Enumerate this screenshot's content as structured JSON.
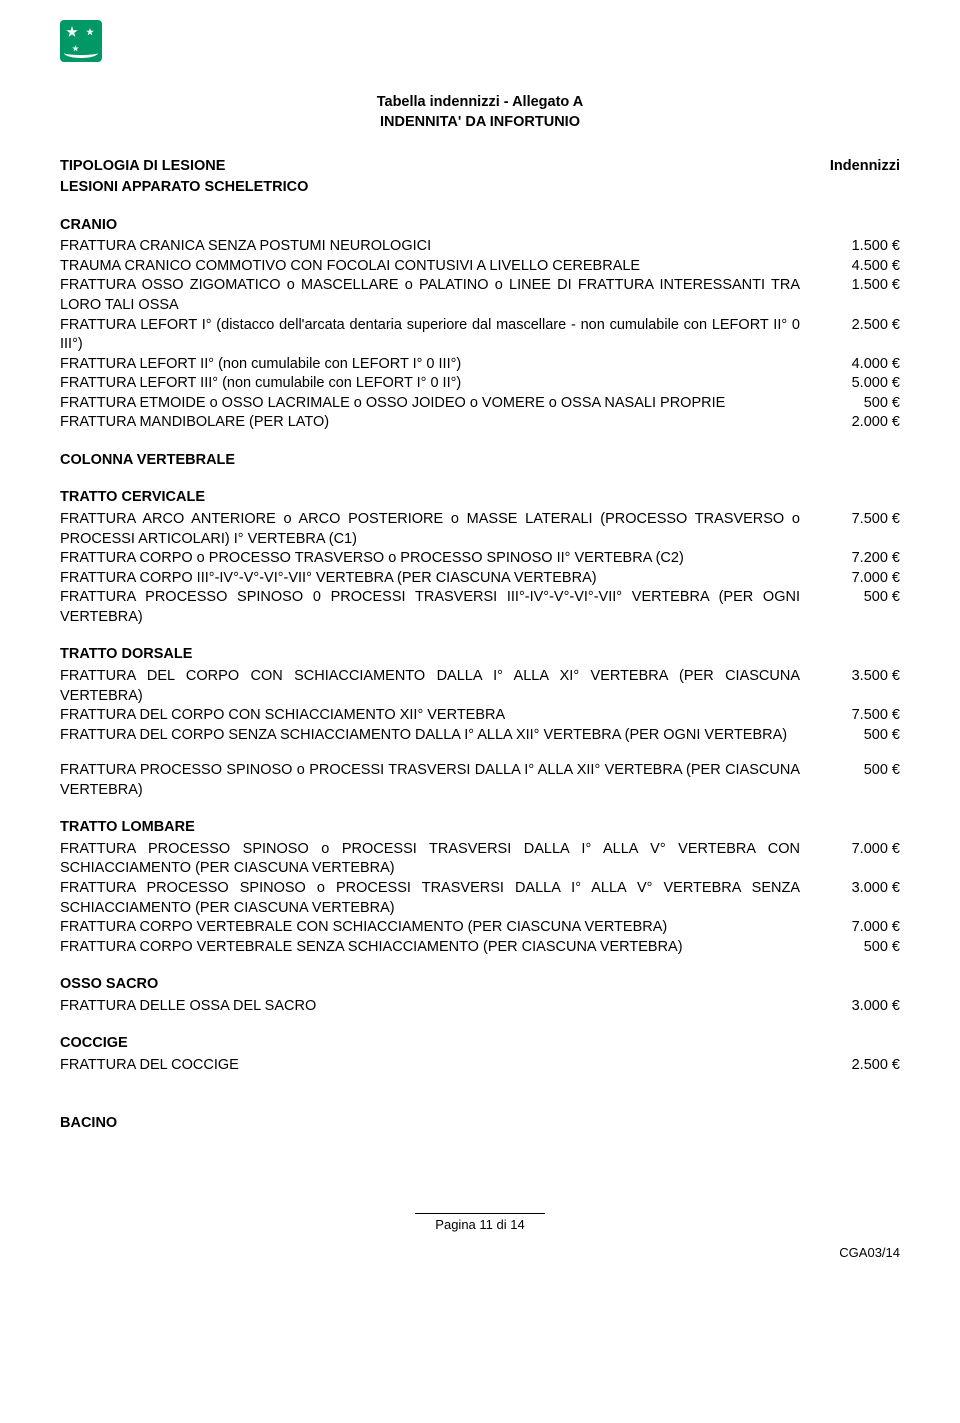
{
  "logo": {
    "bg": "#009966"
  },
  "title": {
    "line1": "Tabella indennizzi - Allegato A",
    "line2": "INDENNITA' DA INFORTUNIO"
  },
  "header": {
    "left": "TIPOLOGIA DI LESIONE",
    "right": "Indennizzi"
  },
  "section0": "LESIONI APPARATO SCHELETRICO",
  "cranio": {
    "title": "CRANIO",
    "rows": [
      {
        "desc": "FRATTURA CRANICA SENZA POSTUMI NEUROLOGICI",
        "amt": "1.500 €"
      },
      {
        "desc": "TRAUMA CRANICO COMMOTIVO CON FOCOLAI CONTUSIVI A LIVELLO CEREBRALE",
        "amt": "4.500 €"
      },
      {
        "desc": "FRATTURA OSSO ZIGOMATICO o MASCELLARE o PALATINO o LINEE DI FRATTURA INTERESSANTI TRA LORO TALI OSSA",
        "amt": "1.500 €"
      },
      {
        "desc": "FRATTURA LEFORT I° (distacco dell'arcata dentaria superiore dal mascellare - non cumulabile con LEFORT II° 0 III°)",
        "amt": "2.500 €"
      },
      {
        "desc": "FRATTURA LEFORT II°  (non cumulabile con LEFORT I° 0 III°)",
        "amt": "4.000 €"
      },
      {
        "desc": "FRATTURA LEFORT III° (non cumulabile con LEFORT I° 0 II°)",
        "amt": "5.000 €"
      },
      {
        "desc": "FRATTURA ETMOIDE o OSSO LACRIMALE o OSSO JOIDEO o VOMERE o OSSA NASALI PROPRIE",
        "amt": "500 €"
      },
      {
        "desc": "FRATTURA MANDIBOLARE (PER LATO)",
        "amt": "2.000 €"
      }
    ]
  },
  "colonna": {
    "title": "COLONNA VERTEBRALE"
  },
  "cervicale": {
    "title": "TRATTO CERVICALE",
    "rows": [
      {
        "desc": "FRATTURA ARCO ANTERIORE o ARCO POSTERIORE o MASSE LATERALI (PROCESSO TRASVERSO o PROCESSI ARTICOLARI) I° VERTEBRA (C1)",
        "amt": "7.500 €"
      },
      {
        "desc": "FRATTURA CORPO o PROCESSO TRASVERSO o PROCESSO SPINOSO II° VERTEBRA (C2)",
        "amt": "7.200 €"
      },
      {
        "desc": "FRATTURA CORPO III°-IV°-V°-VI°-VII° VERTEBRA (PER CIASCUNA VERTEBRA)",
        "amt": "7.000 €"
      },
      {
        "desc": "FRATTURA PROCESSO SPINOSO 0 PROCESSI TRASVERSI III°-IV°-V°-VI°-VII° VERTEBRA (PER OGNI VERTEBRA)",
        "amt": "500 €"
      }
    ]
  },
  "dorsale": {
    "title": "TRATTO DORSALE",
    "rows": [
      {
        "desc": "FRATTURA DEL CORPO CON SCHIACCIAMENTO DALLA I° ALLA XI° VERTEBRA (PER CIASCUNA VERTEBRA)",
        "amt": "3.500 €"
      },
      {
        "desc": "FRATTURA DEL CORPO CON SCHIACCIAMENTO XII° VERTEBRA",
        "amt": "7.500 €"
      },
      {
        "desc": "FRATTURA DEL CORPO SENZA SCHIACCIAMENTO DALLA I° ALLA XII° VERTEBRA (PER OGNI VERTEBRA)",
        "amt": "500 €"
      }
    ],
    "rows2": [
      {
        "desc": "FRATTURA PROCESSO SPINOSO o PROCESSI TRASVERSI DALLA I° ALLA XII° VERTEBRA (PER CIASCUNA VERTEBRA)",
        "amt": "500 €"
      }
    ]
  },
  "lombare": {
    "title": "TRATTO LOMBARE",
    "rows": [
      {
        "desc": "FRATTURA PROCESSO SPINOSO o PROCESSI TRASVERSI DALLA I° ALLA V° VERTEBRA CON SCHIACCIAMENTO (PER CIASCUNA VERTEBRA)",
        "amt": "7.000 €"
      },
      {
        "desc": "FRATTURA PROCESSO SPINOSO o PROCESSI TRASVERSI DALLA I° ALLA V° VERTEBRA SENZA SCHIACCIAMENTO (PER CIASCUNA VERTEBRA)",
        "amt": "3.000 €"
      },
      {
        "desc": "FRATTURA CORPO VERTEBRALE CON SCHIACCIAMENTO (PER CIASCUNA VERTEBRA)",
        "amt": "7.000 €"
      },
      {
        "desc": "FRATTURA CORPO VERTEBRALE SENZA SCHIACCIAMENTO (PER CIASCUNA VERTEBRA)",
        "amt": "500 €"
      }
    ]
  },
  "sacro": {
    "title": "OSSO SACRO",
    "rows": [
      {
        "desc": "FRATTURA DELLE OSSA DEL SACRO",
        "amt": "3.000 €"
      }
    ]
  },
  "coccige": {
    "title": "COCCIGE",
    "rows": [
      {
        "desc": "FRATTURA DEL COCCIGE",
        "amt": "2.500 €"
      }
    ]
  },
  "bacino": {
    "title": "BACINO"
  },
  "footer": {
    "page": "Pagina 11 di 14",
    "code": "CGA03/14"
  }
}
